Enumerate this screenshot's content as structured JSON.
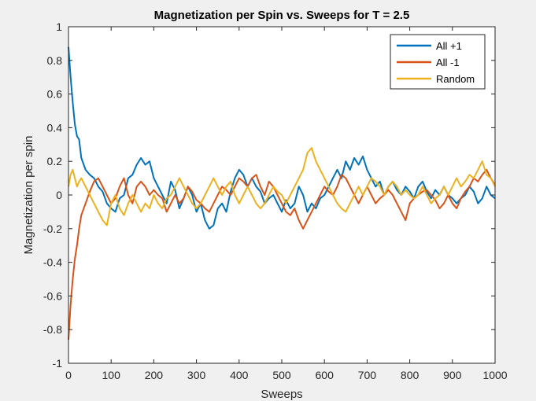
{
  "chart_data": {
    "type": "line",
    "title": "Magnetization per Spin vs. Sweeps for T = 2.5",
    "xlabel": "Sweeps",
    "ylabel": "Magnetization per spin",
    "xlim": [
      0,
      1000
    ],
    "ylim": [
      -1,
      1
    ],
    "xticks": [
      "0",
      "100",
      "200",
      "300",
      "400",
      "500",
      "600",
      "700",
      "800",
      "900",
      "1000"
    ],
    "yticks": [
      "1",
      "0.8",
      "0.6",
      "0.4",
      "0.2",
      "0",
      "-0.2",
      "-0.4",
      "-0.6",
      "-0.8",
      "-1"
    ],
    "grid": false,
    "legend_position": "top-right",
    "series": [
      {
        "name": "All +1",
        "color": "#0072BD",
        "x": [
          0,
          5,
          10,
          15,
          20,
          25,
          30,
          40,
          50,
          60,
          70,
          80,
          90,
          100,
          110,
          120,
          130,
          140,
          150,
          160,
          170,
          180,
          190,
          200,
          210,
          220,
          230,
          240,
          250,
          260,
          270,
          280,
          290,
          300,
          310,
          320,
          330,
          340,
          350,
          360,
          370,
          380,
          390,
          400,
          410,
          420,
          430,
          440,
          450,
          460,
          470,
          480,
          490,
          500,
          510,
          520,
          530,
          540,
          550,
          560,
          570,
          580,
          590,
          600,
          610,
          620,
          630,
          640,
          650,
          660,
          670,
          680,
          690,
          700,
          710,
          720,
          730,
          740,
          750,
          760,
          770,
          780,
          790,
          800,
          810,
          820,
          830,
          840,
          850,
          860,
          870,
          880,
          890,
          900,
          910,
          920,
          930,
          940,
          950,
          960,
          970,
          980,
          990,
          1000
        ],
        "y": [
          0.88,
          0.7,
          0.55,
          0.42,
          0.35,
          0.33,
          0.22,
          0.15,
          0.12,
          0.1,
          0.05,
          0.02,
          -0.05,
          -0.08,
          -0.1,
          -0.02,
          0.0,
          0.1,
          0.12,
          0.18,
          0.22,
          0.18,
          0.2,
          0.1,
          0.05,
          0.0,
          -0.05,
          0.08,
          0.03,
          -0.08,
          -0.02,
          0.05,
          0.0,
          -0.1,
          -0.05,
          -0.15,
          -0.2,
          -0.18,
          -0.08,
          -0.05,
          -0.1,
          0.02,
          0.1,
          0.15,
          0.12,
          0.05,
          0.1,
          0.05,
          0.02,
          -0.05,
          -0.02,
          0.0,
          -0.05,
          -0.1,
          -0.03,
          -0.08,
          -0.05,
          0.05,
          0.0,
          -0.1,
          -0.05,
          -0.08,
          -0.02,
          0.0,
          0.05,
          0.1,
          0.15,
          0.1,
          0.2,
          0.15,
          0.22,
          0.18,
          0.23,
          0.15,
          0.1,
          0.05,
          0.08,
          0.0,
          0.05,
          0.08,
          0.03,
          0.0,
          0.05,
          0.02,
          -0.02,
          0.05,
          0.08,
          0.02,
          -0.02,
          0.03,
          0.0,
          0.05,
          0.0,
          -0.02,
          -0.05,
          -0.02,
          0.0,
          0.05,
          0.02,
          -0.05,
          -0.02,
          0.05,
          0.0,
          -0.02
        ]
      },
      {
        "name": "All -1",
        "color": "#D95319",
        "x": [
          0,
          5,
          10,
          15,
          20,
          25,
          30,
          40,
          50,
          60,
          70,
          80,
          90,
          100,
          110,
          120,
          130,
          140,
          150,
          160,
          170,
          180,
          190,
          200,
          210,
          220,
          230,
          240,
          250,
          260,
          270,
          280,
          290,
          300,
          310,
          320,
          330,
          340,
          350,
          360,
          370,
          380,
          390,
          400,
          410,
          420,
          430,
          440,
          450,
          460,
          470,
          480,
          490,
          500,
          510,
          520,
          530,
          540,
          550,
          560,
          570,
          580,
          590,
          600,
          610,
          620,
          630,
          640,
          650,
          660,
          670,
          680,
          690,
          700,
          710,
          720,
          730,
          740,
          750,
          760,
          770,
          780,
          790,
          800,
          810,
          820,
          830,
          840,
          850,
          860,
          870,
          880,
          890,
          900,
          910,
          920,
          930,
          940,
          950,
          960,
          970,
          980,
          990,
          1000
        ],
        "y": [
          -0.86,
          -0.65,
          -0.5,
          -0.38,
          -0.3,
          -0.2,
          -0.12,
          -0.05,
          0.02,
          0.08,
          0.1,
          0.05,
          0.0,
          -0.05,
          -0.02,
          0.05,
          0.1,
          0.0,
          -0.05,
          0.05,
          0.08,
          0.05,
          0.0,
          0.03,
          0.0,
          -0.02,
          -0.1,
          -0.05,
          0.0,
          -0.05,
          -0.02,
          0.05,
          0.02,
          -0.03,
          -0.05,
          -0.08,
          -0.1,
          -0.05,
          0.0,
          0.05,
          0.03,
          0.0,
          0.05,
          0.1,
          0.08,
          0.05,
          0.1,
          0.12,
          0.05,
          0.0,
          0.08,
          0.05,
          0.0,
          -0.05,
          -0.1,
          -0.12,
          -0.08,
          -0.15,
          -0.2,
          -0.15,
          -0.1,
          -0.05,
          0.0,
          0.05,
          0.02,
          0.0,
          0.05,
          0.12,
          0.1,
          0.05,
          0.0,
          -0.05,
          0.0,
          0.05,
          0.0,
          -0.05,
          -0.02,
          0.0,
          0.03,
          0.0,
          -0.05,
          -0.1,
          -0.15,
          -0.05,
          -0.02,
          0.0,
          0.02,
          0.03,
          0.0,
          -0.03,
          -0.08,
          -0.05,
          0.0,
          -0.05,
          -0.08,
          -0.02,
          0.02,
          0.05,
          0.1,
          0.08,
          0.12,
          0.15,
          0.1,
          0.06
        ]
      },
      {
        "name": "Random",
        "color": "#EDB120",
        "x": [
          0,
          5,
          10,
          15,
          20,
          25,
          30,
          40,
          50,
          60,
          70,
          80,
          90,
          100,
          110,
          120,
          130,
          140,
          150,
          160,
          170,
          180,
          190,
          200,
          210,
          220,
          230,
          240,
          250,
          260,
          270,
          280,
          290,
          300,
          310,
          320,
          330,
          340,
          350,
          360,
          370,
          380,
          390,
          400,
          410,
          420,
          430,
          440,
          450,
          460,
          470,
          480,
          490,
          500,
          510,
          520,
          530,
          540,
          550,
          560,
          570,
          580,
          590,
          600,
          610,
          620,
          630,
          640,
          650,
          660,
          670,
          680,
          690,
          700,
          710,
          720,
          730,
          740,
          750,
          760,
          770,
          780,
          790,
          800,
          810,
          820,
          830,
          840,
          850,
          860,
          870,
          880,
          890,
          900,
          910,
          920,
          930,
          940,
          950,
          960,
          970,
          980,
          990,
          1000
        ],
        "y": [
          0.05,
          0.12,
          0.15,
          0.1,
          0.05,
          0.08,
          0.1,
          0.05,
          0.0,
          -0.05,
          -0.1,
          -0.15,
          -0.18,
          -0.05,
          0.0,
          -0.08,
          -0.12,
          -0.05,
          0.0,
          -0.05,
          -0.1,
          -0.05,
          -0.08,
          0.0,
          -0.05,
          -0.08,
          -0.02,
          0.0,
          0.05,
          0.1,
          0.05,
          0.0,
          -0.05,
          -0.08,
          -0.05,
          0.0,
          0.05,
          0.1,
          0.05,
          0.0,
          0.05,
          0.08,
          0.0,
          -0.05,
          0.0,
          0.05,
          0.0,
          -0.05,
          -0.08,
          -0.05,
          0.0,
          0.05,
          0.02,
          0.0,
          -0.05,
          0.0,
          0.05,
          0.1,
          0.15,
          0.25,
          0.28,
          0.2,
          0.15,
          0.1,
          0.05,
          0.0,
          -0.05,
          -0.08,
          -0.1,
          -0.05,
          0.0,
          0.05,
          0.0,
          0.05,
          0.1,
          0.08,
          0.05,
          0.0,
          0.05,
          0.08,
          0.05,
          0.0,
          0.03,
          0.0,
          -0.02,
          0.0,
          0.05,
          0.0,
          -0.05,
          -0.02,
          0.0,
          0.05,
          0.0,
          0.05,
          0.1,
          0.05,
          0.08,
          0.12,
          0.1,
          0.15,
          0.2,
          0.12,
          0.1,
          0.05
        ]
      }
    ]
  }
}
